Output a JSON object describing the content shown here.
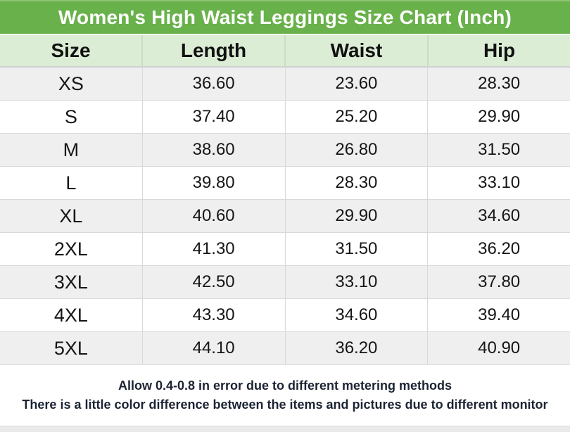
{
  "title": "Women's High Waist Leggings Size Chart (Inch)",
  "colors": {
    "title_bar_bg": "#69b14b",
    "header_bg": "#dcedd5",
    "alt_row_bg": "#efefef",
    "row_bg": "#ffffff",
    "title_text": "#ffffff",
    "table_text": "#161616",
    "footer_text": "#1c2333"
  },
  "chart_data": {
    "type": "table",
    "title": "Women's High Waist Leggings Size Chart (Inch)",
    "columns": [
      "Size",
      "Length",
      "Waist",
      "Hip"
    ],
    "unit": "Inch",
    "rows": [
      [
        "XS",
        "36.60",
        "23.60",
        "28.30"
      ],
      [
        "S",
        "37.40",
        "25.20",
        "29.90"
      ],
      [
        "M",
        "38.60",
        "26.80",
        "31.50"
      ],
      [
        "L",
        "39.80",
        "28.30",
        "33.10"
      ],
      [
        "XL",
        "40.60",
        "29.90",
        "34.60"
      ],
      [
        "2XL",
        "41.30",
        "31.50",
        "36.20"
      ],
      [
        "3XL",
        "42.50",
        "33.10",
        "37.80"
      ],
      [
        "4XL",
        "43.30",
        "34.60",
        "39.40"
      ],
      [
        "5XL",
        "44.10",
        "36.20",
        "40.90"
      ]
    ]
  },
  "footer": {
    "line1": "Allow 0.4-0.8 in error due to different metering methods",
    "line2": "There is a little color difference between the items and pictures due to different monitor"
  }
}
